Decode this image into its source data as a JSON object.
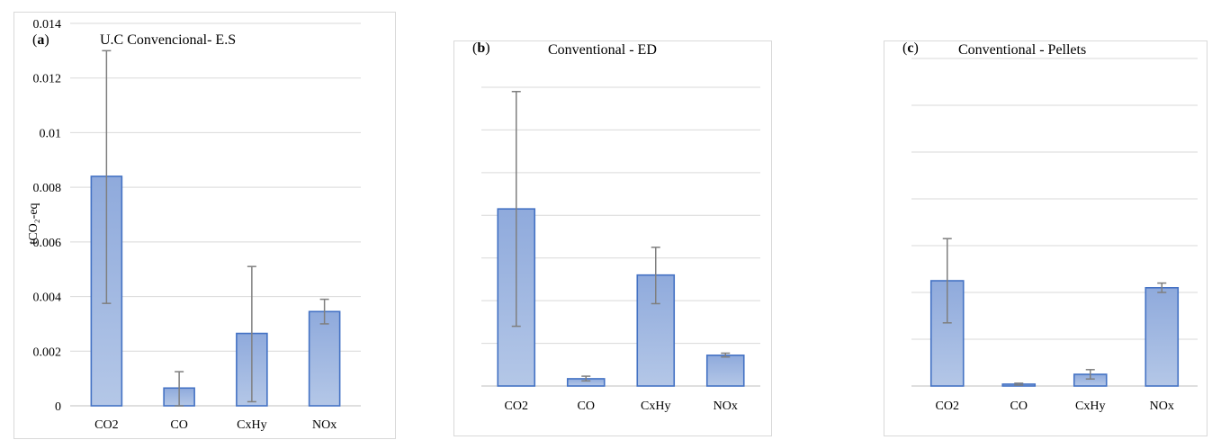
{
  "chart_data": [
    {
      "type": "bar",
      "panel_tag": "(a)",
      "panel_tag_bold": "a",
      "title": "U.C Convencional- E.S",
      "xlabel": "",
      "ylabel": "tCO₂-eq",
      "categories": [
        "CO2",
        "CO",
        "CxHy",
        "NOx"
      ],
      "values": [
        0.0084,
        0.00065,
        0.00265,
        0.00345
      ],
      "error_low": [
        0.00375,
        0.0,
        0.00015,
        0.003
      ],
      "error_high": [
        0.013,
        0.00125,
        0.0051,
        0.0039
      ],
      "ylim": [
        0,
        0.014
      ],
      "yticks": [
        "0",
        "0.002",
        "0.004",
        "0.006",
        "0.008",
        "0.01",
        "0.012",
        "0.014"
      ],
      "grid": true
    },
    {
      "type": "bar",
      "panel_tag": "(b)",
      "panel_tag_bold": "b",
      "title": "Conventional - ED",
      "xlabel": "",
      "ylabel": "",
      "categories": [
        "CO2",
        "CO",
        "CxHy",
        "NOx"
      ],
      "values": [
        4.15,
        0.17,
        2.6,
        0.72
      ],
      "error_low": [
        1.4,
        0.12,
        1.93,
        0.68
      ],
      "error_high": [
        6.9,
        0.23,
        3.25,
        0.77
      ],
      "ylim": [
        0,
        7
      ],
      "yticks": [
        "",
        "",
        "",
        "",
        "",
        "",
        "",
        ""
      ],
      "grid": true
    },
    {
      "type": "bar",
      "panel_tag": "(c)",
      "panel_tag_bold": "c",
      "title": "Conventional - Pellets",
      "xlabel": "",
      "ylabel": "",
      "categories": [
        "CO2",
        "CO",
        "CxHy",
        "NOx"
      ],
      "values": [
        2.25,
        0.04,
        0.25,
        2.1
      ],
      "error_low": [
        1.35,
        0.02,
        0.15,
        2.0
      ],
      "error_high": [
        3.15,
        0.06,
        0.35,
        2.2
      ],
      "ylim": [
        0,
        7
      ],
      "yticks": [
        "",
        "",
        "",
        "",
        "",
        "",
        "",
        ""
      ],
      "grid": true
    }
  ]
}
